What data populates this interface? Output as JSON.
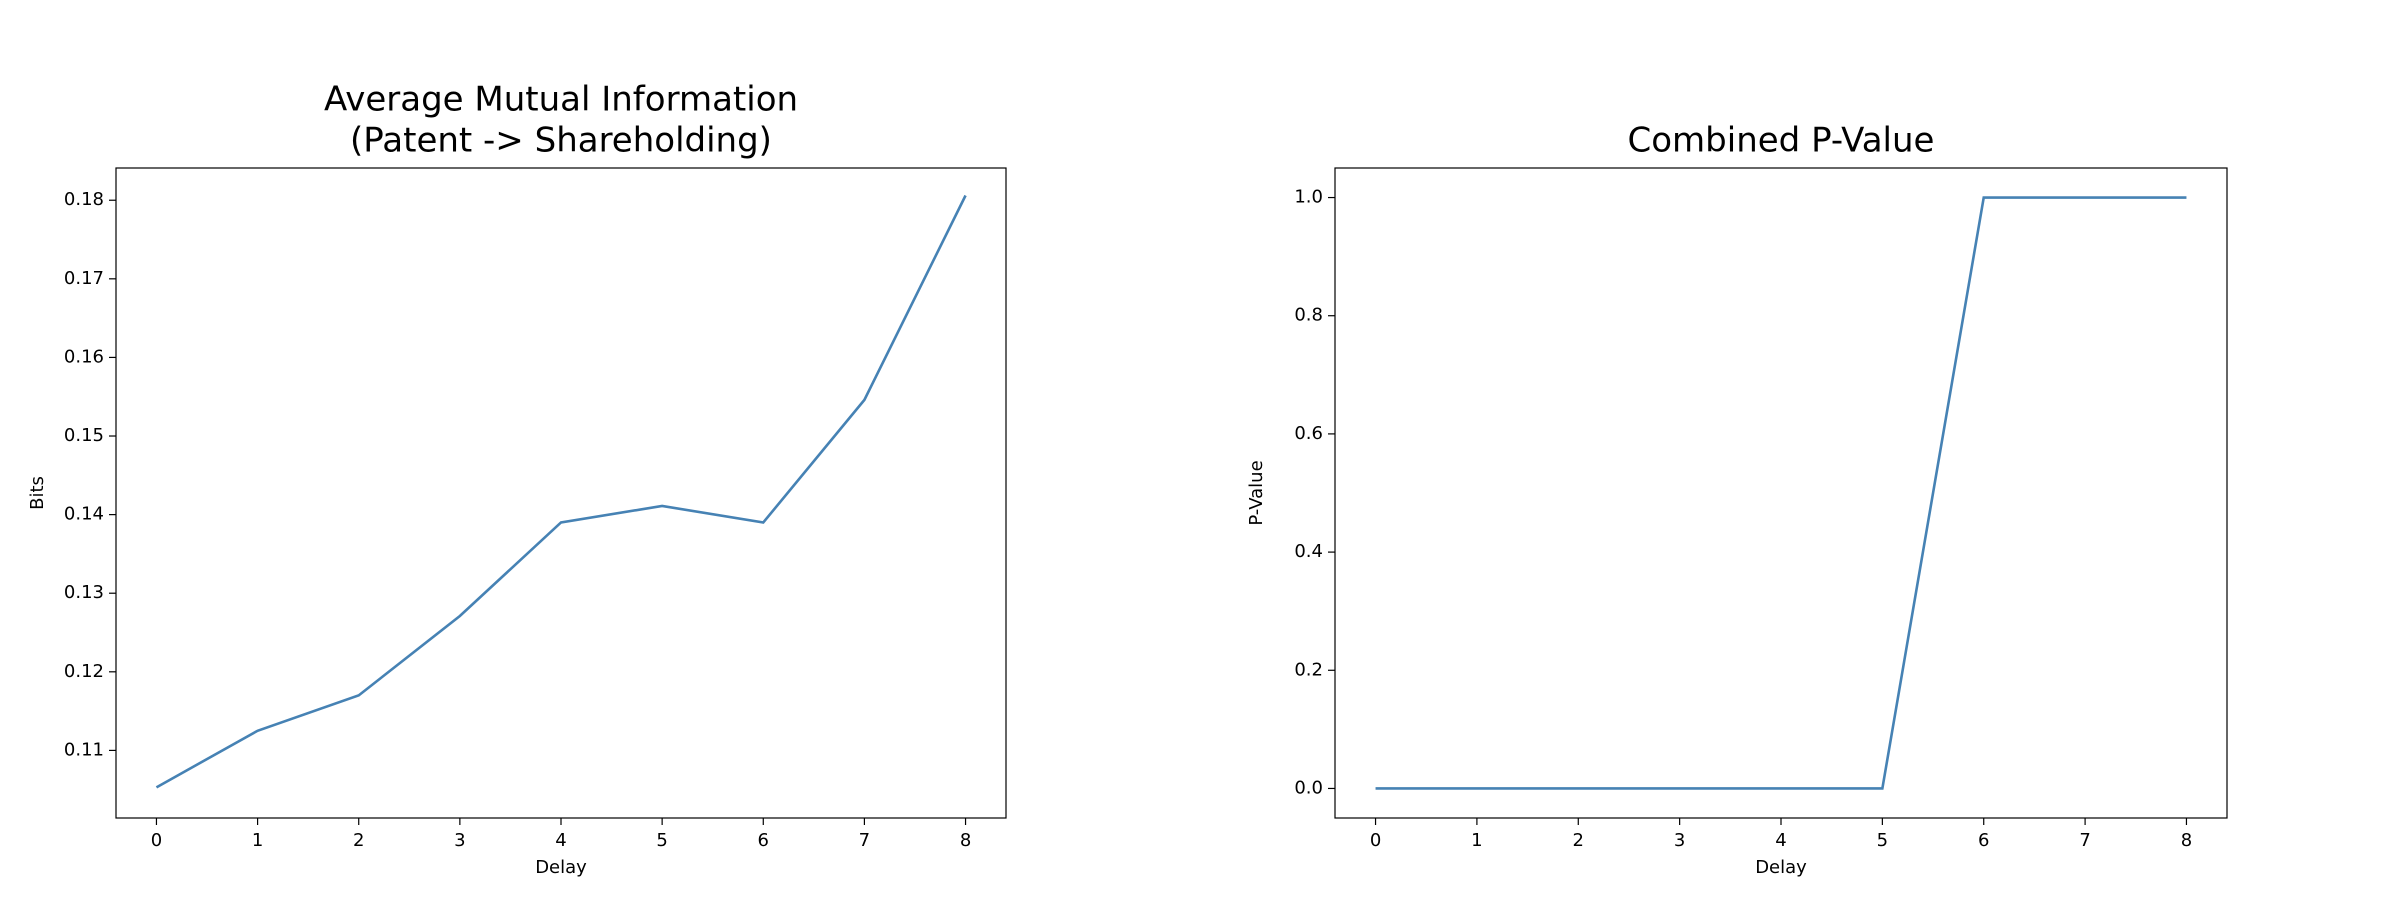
{
  "chart_data": [
    {
      "type": "line",
      "title": [
        "Average Mutual Information",
        "(Patent -> Shareholding)"
      ],
      "xlabel": "Delay",
      "ylabel": "Bits",
      "x": [
        0,
        1,
        2,
        3,
        4,
        5,
        6,
        7,
        8
      ],
      "series": [
        {
          "color": "#4682b4",
          "values": [
            0.1053,
            0.1125,
            0.117,
            0.1271,
            0.139,
            0.1411,
            0.139,
            0.1546,
            0.1806
          ]
        }
      ],
      "xlim": [
        -0.4,
        8.4
      ],
      "ylim": [
        0.1014,
        0.1841
      ],
      "xticks": [
        0,
        1,
        2,
        3,
        4,
        5,
        6,
        7,
        8
      ],
      "yticks": [
        0.11,
        0.12,
        0.13,
        0.14,
        0.15,
        0.16,
        0.17,
        0.18
      ]
    },
    {
      "type": "line",
      "title": "Combined P-Value",
      "xlabel": "Delay",
      "ylabel": "P-Value",
      "x": [
        0,
        1,
        2,
        3,
        4,
        5,
        6,
        7,
        8
      ],
      "series": [
        {
          "color": "#4682b4",
          "values": [
            0,
            0,
            0,
            0,
            0,
            0,
            1,
            1,
            1
          ]
        }
      ],
      "xlim": [
        -0.4,
        8.4
      ],
      "ylim": [
        -0.05,
        1.05
      ],
      "xticks": [
        0,
        1,
        2,
        3,
        4,
        5,
        6,
        7,
        8
      ],
      "yticks": [
        {
          "value": 0,
          "label": "0.0"
        },
        0.2,
        0.4,
        0.6,
        0.8,
        {
          "value": 1,
          "label": "1.0"
        }
      ]
    }
  ]
}
